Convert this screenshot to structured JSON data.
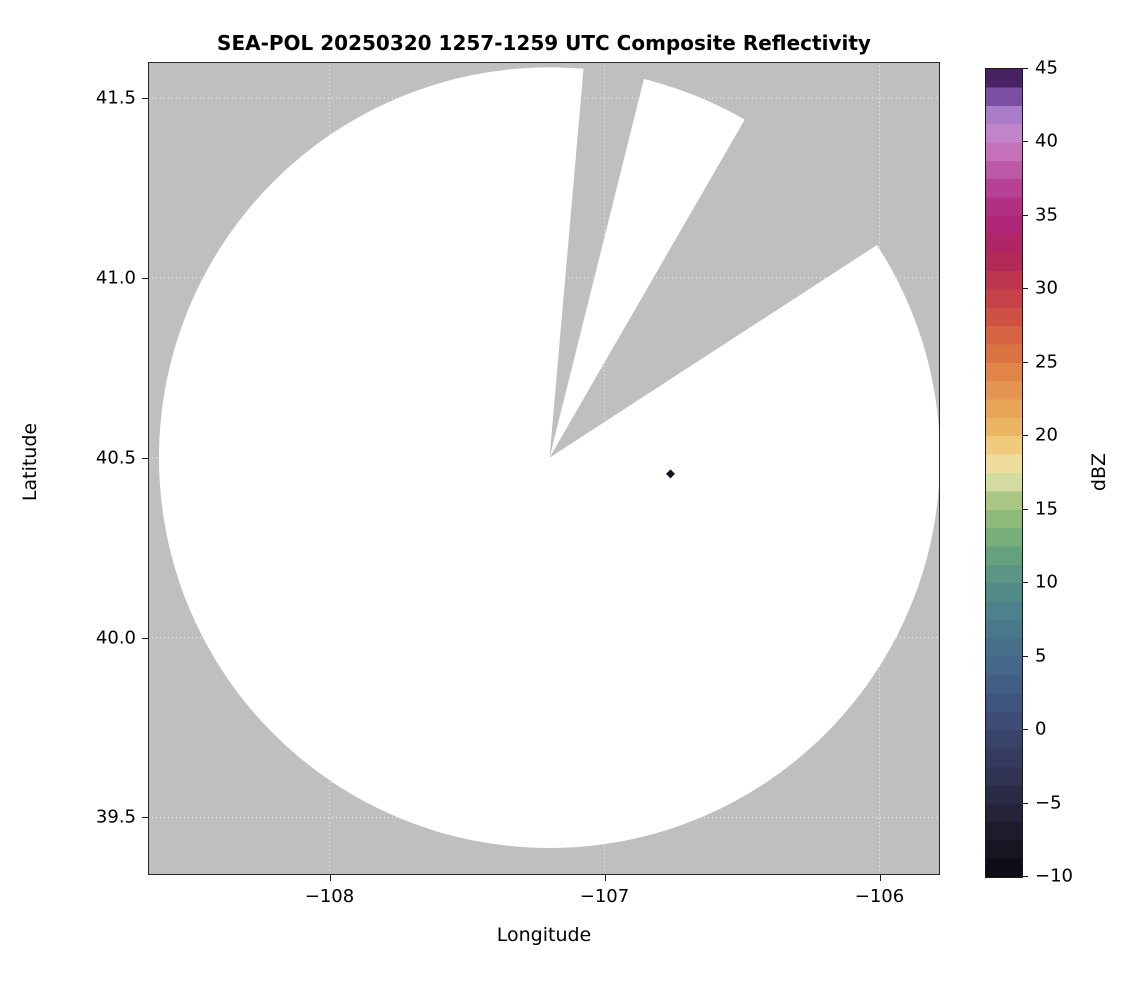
{
  "chart_data": {
    "type": "heatmap",
    "title": "SEA-POL 20250320 1257-1259 UTC Composite Reflectivity",
    "xlabel": "Longitude",
    "ylabel": "Latitude",
    "xlim": [
      -108.66,
      -105.78
    ],
    "ylim": [
      39.34,
      41.6
    ],
    "grid": true,
    "legend_position": "right-colorbar",
    "no_data_color": "#bfbfbf",
    "coverage_color": "#ffffff",
    "radar": {
      "lon": -107.2,
      "lat": 40.5,
      "range_deg_lon": 1.42,
      "range_deg_lat": 1.085
    },
    "blocked_sectors_az_deg": [
      [
        5,
        14
      ],
      [
        30,
        57
      ]
    ],
    "echo_point": {
      "lon": -106.76,
      "lat": 40.455,
      "color": "#16101f"
    },
    "xticks": [
      {
        "v": -108,
        "label": "−108"
      },
      {
        "v": -107,
        "label": "−107"
      },
      {
        "v": -106,
        "label": "−106"
      }
    ],
    "yticks": [
      {
        "v": 41.5,
        "label": "41.5"
      },
      {
        "v": 41.0,
        "label": "41.0"
      },
      {
        "v": 40.5,
        "label": "40.5"
      },
      {
        "v": 40.0,
        "label": "40.0"
      },
      {
        "v": 39.5,
        "label": "39.5"
      }
    ],
    "colorbar": {
      "label": "dBZ",
      "min": -10,
      "max": 45,
      "ticks": [
        {
          "v": 45,
          "label": "45"
        },
        {
          "v": 40,
          "label": "40"
        },
        {
          "v": 35,
          "label": "35"
        },
        {
          "v": 30,
          "label": "30"
        },
        {
          "v": 25,
          "label": "25"
        },
        {
          "v": 20,
          "label": "20"
        },
        {
          "v": 15,
          "label": "15"
        },
        {
          "v": 10,
          "label": "10"
        },
        {
          "v": 5,
          "label": "5"
        },
        {
          "v": 0,
          "label": "0"
        },
        {
          "v": -5,
          "label": "−5"
        },
        {
          "v": -10,
          "label": "−10"
        }
      ],
      "stops": [
        {
          "v": -10,
          "c": "#0b0a11"
        },
        {
          "v": -8,
          "c": "#171623"
        },
        {
          "v": -6,
          "c": "#222134"
        },
        {
          "v": -4,
          "c": "#2c2e49"
        },
        {
          "v": -2,
          "c": "#343a5d"
        },
        {
          "v": 0,
          "c": "#3a4870"
        },
        {
          "v": 2,
          "c": "#3f567e"
        },
        {
          "v": 4,
          "c": "#446488"
        },
        {
          "v": 6,
          "c": "#48728b"
        },
        {
          "v": 8,
          "c": "#4d808b"
        },
        {
          "v": 10,
          "c": "#559086"
        },
        {
          "v": 12,
          "c": "#66a27c"
        },
        {
          "v": 14,
          "c": "#85b577"
        },
        {
          "v": 16,
          "c": "#b2ca87"
        },
        {
          "v": 17,
          "c": "#d9dda4"
        },
        {
          "v": 18,
          "c": "#eedfa2"
        },
        {
          "v": 19,
          "c": "#f0d285"
        },
        {
          "v": 20,
          "c": "#eebe6b"
        },
        {
          "v": 22,
          "c": "#e8a256"
        },
        {
          "v": 24,
          "c": "#e18948"
        },
        {
          "v": 26,
          "c": "#da6f42"
        },
        {
          "v": 28,
          "c": "#d05343"
        },
        {
          "v": 30,
          "c": "#c23a4a"
        },
        {
          "v": 32,
          "c": "#b12a58"
        },
        {
          "v": 34,
          "c": "#ad2370"
        },
        {
          "v": 36,
          "c": "#b23389"
        },
        {
          "v": 38,
          "c": "#bd56a5"
        },
        {
          "v": 40,
          "c": "#c87fc4"
        },
        {
          "v": 41.5,
          "c": "#b78ad3"
        },
        {
          "v": 42.5,
          "c": "#9266bb"
        },
        {
          "v": 43.5,
          "c": "#6b4191"
        },
        {
          "v": 44.5,
          "c": "#431f5c"
        },
        {
          "v": 45,
          "c": "#2a1038"
        }
      ]
    }
  }
}
